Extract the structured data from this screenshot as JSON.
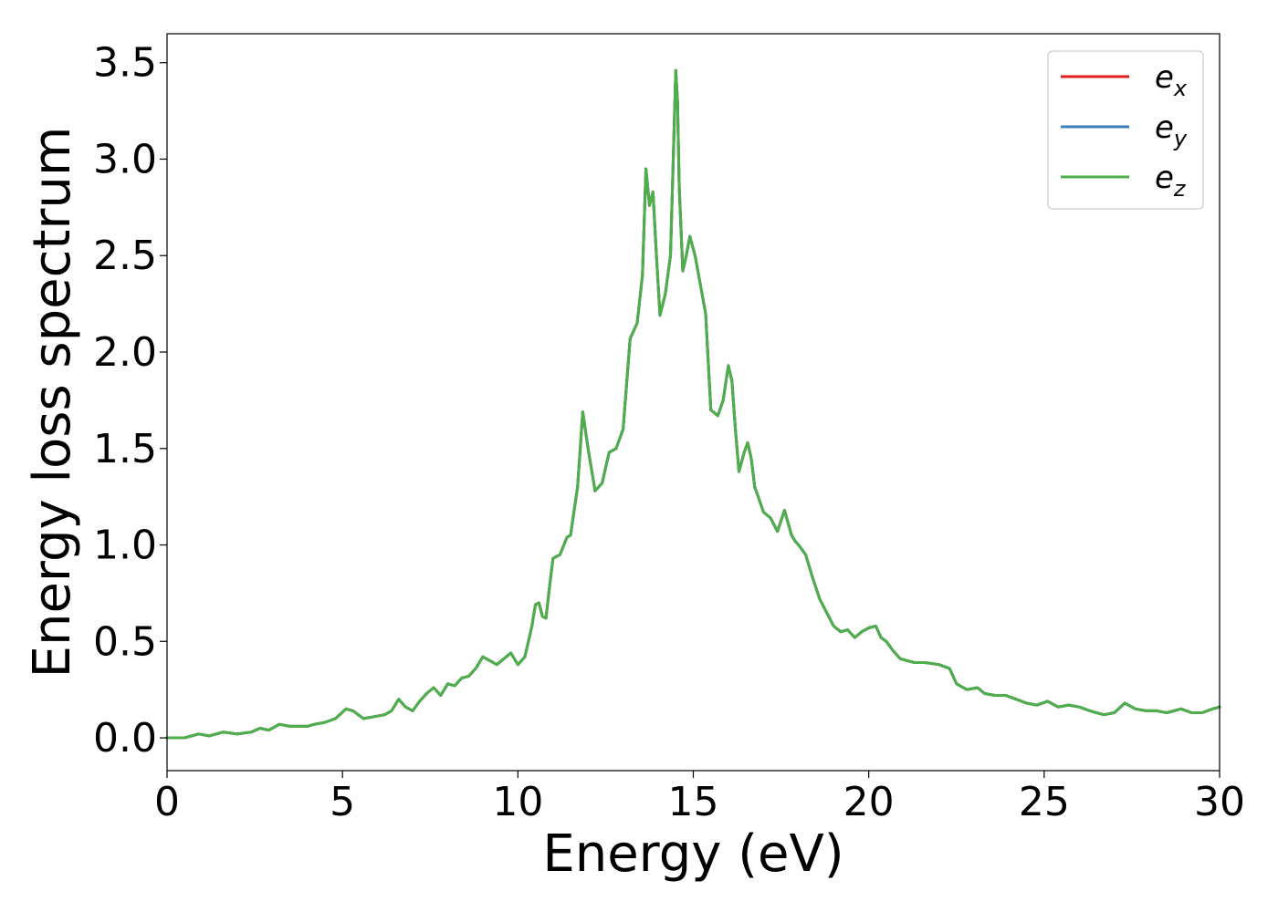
{
  "chart_data": {
    "type": "line",
    "xlabel": "Energy (eV)",
    "ylabel": "Energy loss spectrum",
    "xlim": [
      0,
      30
    ],
    "ylim": [
      -0.17,
      3.65
    ],
    "x_ticks": [
      0,
      5,
      10,
      15,
      20,
      25,
      30
    ],
    "x_tick_labels": [
      "0",
      "5",
      "10",
      "15",
      "20",
      "25",
      "30"
    ],
    "y_ticks": [
      0.0,
      0.5,
      1.0,
      1.5,
      2.0,
      2.5,
      3.0,
      3.5
    ],
    "y_tick_labels": [
      "0.0",
      "0.5",
      "1.0",
      "1.5",
      "2.0",
      "2.5",
      "3.0",
      "3.5"
    ],
    "grid": false,
    "legend_position": "top-right",
    "x": [
      0,
      0.5,
      0.9,
      1.2,
      1.6,
      2.0,
      2.4,
      2.65,
      2.9,
      3.2,
      3.5,
      4.0,
      4.2,
      4.5,
      4.8,
      5.1,
      5.3,
      5.6,
      5.9,
      6.2,
      6.4,
      6.6,
      6.8,
      7.0,
      7.2,
      7.4,
      7.6,
      7.8,
      8.0,
      8.2,
      8.4,
      8.6,
      8.8,
      9.0,
      9.2,
      9.4,
      9.6,
      9.8,
      10.0,
      10.2,
      10.4,
      10.5,
      10.6,
      10.7,
      10.8,
      10.9,
      11.0,
      11.2,
      11.4,
      11.5,
      11.7,
      11.85,
      12.0,
      12.2,
      12.4,
      12.6,
      12.8,
      13.0,
      13.2,
      13.4,
      13.55,
      13.65,
      13.75,
      13.85,
      13.95,
      14.05,
      14.2,
      14.35,
      14.5,
      14.55,
      14.6,
      14.7,
      14.8,
      14.9,
      15.05,
      15.2,
      15.35,
      15.5,
      15.7,
      15.85,
      16.0,
      16.1,
      16.2,
      16.3,
      16.45,
      16.55,
      16.65,
      16.75,
      16.85,
      17.0,
      17.2,
      17.4,
      17.6,
      17.8,
      17.9,
      18.0,
      18.2,
      18.4,
      18.6,
      18.8,
      19.0,
      19.2,
      19.4,
      19.6,
      19.8,
      20.0,
      20.2,
      20.35,
      20.5,
      20.7,
      20.9,
      21.1,
      21.3,
      21.6,
      22.0,
      22.3,
      22.5,
      22.8,
      23.1,
      23.3,
      23.6,
      23.9,
      24.2,
      24.5,
      24.8,
      25.1,
      25.4,
      25.7,
      26.0,
      26.3,
      26.7,
      27.0,
      27.3,
      27.6,
      27.9,
      28.2,
      28.5,
      28.9,
      29.2,
      29.5,
      29.8,
      30.0
    ],
    "series": [
      {
        "name": "e_x",
        "color": "#e41a1c",
        "values": [
          0.0,
          0.0,
          0.02,
          0.01,
          0.03,
          0.02,
          0.03,
          0.05,
          0.04,
          0.07,
          0.06,
          0.06,
          0.07,
          0.08,
          0.1,
          0.15,
          0.14,
          0.1,
          0.11,
          0.12,
          0.14,
          0.2,
          0.16,
          0.14,
          0.19,
          0.23,
          0.26,
          0.22,
          0.28,
          0.27,
          0.31,
          0.32,
          0.36,
          0.42,
          0.4,
          0.38,
          0.41,
          0.44,
          0.38,
          0.42,
          0.58,
          0.69,
          0.7,
          0.63,
          0.62,
          0.78,
          0.93,
          0.95,
          1.04,
          1.05,
          1.3,
          1.69,
          1.5,
          1.28,
          1.32,
          1.48,
          1.5,
          1.6,
          2.07,
          2.15,
          2.4,
          2.95,
          2.76,
          2.83,
          2.5,
          2.19,
          2.3,
          2.5,
          3.46,
          3.3,
          2.85,
          2.42,
          2.5,
          2.6,
          2.5,
          2.35,
          2.2,
          1.7,
          1.67,
          1.75,
          1.93,
          1.85,
          1.6,
          1.38,
          1.48,
          1.53,
          1.45,
          1.3,
          1.25,
          1.17,
          1.14,
          1.07,
          1.18,
          1.05,
          1.02,
          1.0,
          0.95,
          0.83,
          0.72,
          0.65,
          0.58,
          0.55,
          0.56,
          0.52,
          0.55,
          0.57,
          0.58,
          0.52,
          0.5,
          0.45,
          0.41,
          0.4,
          0.39,
          0.39,
          0.38,
          0.36,
          0.28,
          0.25,
          0.26,
          0.23,
          0.22,
          0.22,
          0.2,
          0.18,
          0.17,
          0.19,
          0.16,
          0.17,
          0.16,
          0.14,
          0.12,
          0.13,
          0.18,
          0.15,
          0.14,
          0.14,
          0.13,
          0.15,
          0.13,
          0.13,
          0.15,
          0.16
        ]
      },
      {
        "name": "e_y",
        "color": "#377eb8",
        "values": [
          0.0,
          0.0,
          0.02,
          0.01,
          0.03,
          0.02,
          0.03,
          0.05,
          0.04,
          0.07,
          0.06,
          0.06,
          0.07,
          0.08,
          0.1,
          0.15,
          0.14,
          0.1,
          0.11,
          0.12,
          0.14,
          0.2,
          0.16,
          0.14,
          0.19,
          0.23,
          0.26,
          0.22,
          0.28,
          0.27,
          0.31,
          0.32,
          0.36,
          0.42,
          0.4,
          0.38,
          0.41,
          0.44,
          0.38,
          0.42,
          0.58,
          0.69,
          0.7,
          0.63,
          0.62,
          0.78,
          0.93,
          0.95,
          1.04,
          1.05,
          1.3,
          1.69,
          1.5,
          1.28,
          1.32,
          1.48,
          1.5,
          1.6,
          2.07,
          2.15,
          2.4,
          2.95,
          2.76,
          2.83,
          2.5,
          2.19,
          2.3,
          2.5,
          3.46,
          3.3,
          2.85,
          2.42,
          2.5,
          2.6,
          2.5,
          2.35,
          2.2,
          1.7,
          1.67,
          1.75,
          1.93,
          1.85,
          1.6,
          1.38,
          1.48,
          1.53,
          1.45,
          1.3,
          1.25,
          1.17,
          1.14,
          1.07,
          1.18,
          1.05,
          1.02,
          1.0,
          0.95,
          0.83,
          0.72,
          0.65,
          0.58,
          0.55,
          0.56,
          0.52,
          0.55,
          0.57,
          0.58,
          0.52,
          0.5,
          0.45,
          0.41,
          0.4,
          0.39,
          0.39,
          0.38,
          0.36,
          0.28,
          0.25,
          0.26,
          0.23,
          0.22,
          0.22,
          0.2,
          0.18,
          0.17,
          0.19,
          0.16,
          0.17,
          0.16,
          0.14,
          0.12,
          0.13,
          0.18,
          0.15,
          0.14,
          0.14,
          0.13,
          0.15,
          0.13,
          0.13,
          0.15,
          0.16
        ]
      },
      {
        "name": "e_z",
        "color": "#4daf4a",
        "values": [
          0.0,
          0.0,
          0.02,
          0.01,
          0.03,
          0.02,
          0.03,
          0.05,
          0.04,
          0.07,
          0.06,
          0.06,
          0.07,
          0.08,
          0.1,
          0.15,
          0.14,
          0.1,
          0.11,
          0.12,
          0.14,
          0.2,
          0.16,
          0.14,
          0.19,
          0.23,
          0.26,
          0.22,
          0.28,
          0.27,
          0.31,
          0.32,
          0.36,
          0.42,
          0.4,
          0.38,
          0.41,
          0.44,
          0.38,
          0.42,
          0.58,
          0.69,
          0.7,
          0.63,
          0.62,
          0.78,
          0.93,
          0.95,
          1.04,
          1.05,
          1.3,
          1.69,
          1.5,
          1.28,
          1.32,
          1.48,
          1.5,
          1.6,
          2.07,
          2.15,
          2.4,
          2.95,
          2.76,
          2.83,
          2.5,
          2.19,
          2.3,
          2.5,
          3.46,
          3.3,
          2.85,
          2.42,
          2.5,
          2.6,
          2.5,
          2.35,
          2.2,
          1.7,
          1.67,
          1.75,
          1.93,
          1.85,
          1.6,
          1.38,
          1.48,
          1.53,
          1.45,
          1.3,
          1.25,
          1.17,
          1.14,
          1.07,
          1.18,
          1.05,
          1.02,
          1.0,
          0.95,
          0.83,
          0.72,
          0.65,
          0.58,
          0.55,
          0.56,
          0.52,
          0.55,
          0.57,
          0.58,
          0.52,
          0.5,
          0.45,
          0.41,
          0.4,
          0.39,
          0.39,
          0.38,
          0.36,
          0.28,
          0.25,
          0.26,
          0.23,
          0.22,
          0.22,
          0.2,
          0.18,
          0.17,
          0.19,
          0.16,
          0.17,
          0.16,
          0.14,
          0.12,
          0.13,
          0.18,
          0.15,
          0.14,
          0.14,
          0.13,
          0.15,
          0.13,
          0.13,
          0.15,
          0.16
        ]
      }
    ],
    "legend": [
      {
        "base": "e",
        "sub": "x",
        "color": "#e41a1c"
      },
      {
        "base": "e",
        "sub": "y",
        "color": "#377eb8"
      },
      {
        "base": "e",
        "sub": "z",
        "color": "#4daf4a"
      }
    ]
  }
}
